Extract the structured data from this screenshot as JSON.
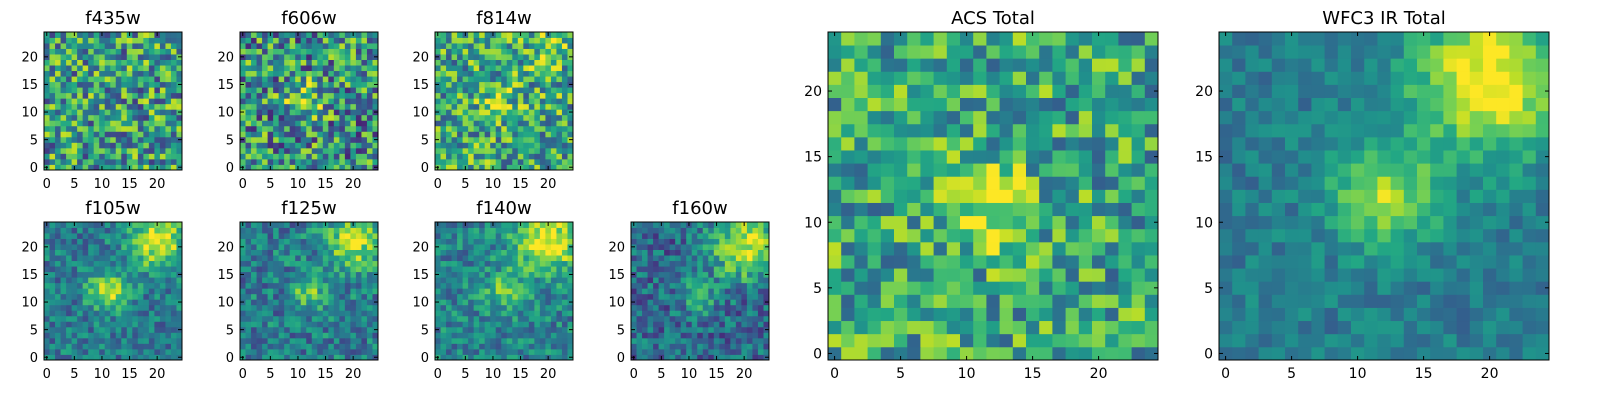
{
  "colormap": "viridis",
  "chart_data": [
    {
      "type": "heatmap",
      "title": "f435w",
      "xticks": [
        0,
        5,
        10,
        15,
        20
      ],
      "yticks": [
        0,
        5,
        10,
        15,
        20
      ],
      "xlim": [
        -0.5,
        24.5
      ],
      "ylim": [
        -0.5,
        24.5
      ],
      "features": {
        "base": 0.55,
        "noise": 0.38,
        "blobs": []
      }
    },
    {
      "type": "heatmap",
      "title": "f606w",
      "xticks": [
        0,
        5,
        10,
        15,
        20
      ],
      "yticks": [
        0,
        5,
        10,
        15,
        20
      ],
      "xlim": [
        -0.5,
        24.5
      ],
      "ylim": [
        -0.5,
        24.5
      ],
      "features": {
        "base": 0.5,
        "noise": 0.4,
        "blobs": [
          {
            "x": 11,
            "y": 12,
            "s": 2.2,
            "a": 0.4
          }
        ]
      }
    },
    {
      "type": "heatmap",
      "title": "f814w",
      "xticks": [
        0,
        5,
        10,
        15,
        20
      ],
      "yticks": [
        0,
        5,
        10,
        15,
        20
      ],
      "xlim": [
        -0.5,
        24.5
      ],
      "ylim": [
        -0.5,
        24.5
      ],
      "features": {
        "base": 0.6,
        "noise": 0.35,
        "blobs": [
          {
            "x": 11,
            "y": 12,
            "s": 2,
            "a": 0.25
          },
          {
            "x": 20,
            "y": 22,
            "s": 3,
            "a": 0.2
          }
        ]
      }
    },
    {
      "type": "heatmap",
      "title": "f105w",
      "xticks": [
        0,
        5,
        10,
        15,
        20
      ],
      "yticks": [
        0,
        5,
        10,
        15,
        20
      ],
      "xlim": [
        -0.5,
        24.5
      ],
      "ylim": [
        -0.5,
        24.5
      ],
      "features": {
        "base": 0.42,
        "noise": 0.2,
        "blobs": [
          {
            "x": 20,
            "y": 21,
            "s": 3.5,
            "a": 0.55
          },
          {
            "x": 11,
            "y": 12,
            "s": 2.5,
            "a": 0.45
          }
        ]
      }
    },
    {
      "type": "heatmap",
      "title": "f125w",
      "xticks": [
        0,
        5,
        10,
        15,
        20
      ],
      "yticks": [
        0,
        5,
        10,
        15,
        20
      ],
      "xlim": [
        -0.5,
        24.5
      ],
      "ylim": [
        -0.5,
        24.5
      ],
      "features": {
        "base": 0.42,
        "noise": 0.22,
        "blobs": [
          {
            "x": 20,
            "y": 21,
            "s": 3.5,
            "a": 0.5
          },
          {
            "x": 12,
            "y": 12,
            "s": 2.2,
            "a": 0.35
          }
        ]
      }
    },
    {
      "type": "heatmap",
      "title": "f140w",
      "xticks": [
        0,
        5,
        10,
        15,
        20
      ],
      "yticks": [
        0,
        5,
        10,
        15,
        20
      ],
      "xlim": [
        -0.5,
        24.5
      ],
      "ylim": [
        -0.5,
        24.5
      ],
      "features": {
        "base": 0.45,
        "noise": 0.2,
        "blobs": [
          {
            "x": 20,
            "y": 21,
            "s": 4,
            "a": 0.55
          },
          {
            "x": 12,
            "y": 12,
            "s": 2.5,
            "a": 0.3
          }
        ]
      }
    },
    {
      "type": "heatmap",
      "title": "f160w",
      "xticks": [
        0,
        5,
        10,
        15,
        20
      ],
      "yticks": [
        0,
        5,
        10,
        15,
        20
      ],
      "xlim": [
        -0.5,
        24.5
      ],
      "ylim": [
        -0.5,
        24.5
      ],
      "features": {
        "base": 0.35,
        "noise": 0.22,
        "blobs": [
          {
            "x": 20,
            "y": 20,
            "s": 4,
            "a": 0.6
          },
          {
            "x": 12,
            "y": 11,
            "s": 2.5,
            "a": 0.25
          }
        ]
      }
    },
    {
      "type": "heatmap",
      "title": "ACS Total",
      "xticks": [
        0,
        5,
        10,
        15,
        20
      ],
      "yticks": [
        0,
        5,
        10,
        15,
        20
      ],
      "xlim": [
        -0.5,
        24.5
      ],
      "ylim": [
        -0.5,
        24.5
      ],
      "features": {
        "base": 0.6,
        "noise": 0.3,
        "blobs": [
          {
            "x": 11.5,
            "y": 11.5,
            "s": 2.2,
            "a": 0.4
          }
        ]
      }
    },
    {
      "type": "heatmap",
      "title": "WFC3 IR Total",
      "xticks": [
        0,
        5,
        10,
        15,
        20
      ],
      "yticks": [
        0,
        5,
        10,
        15,
        20
      ],
      "xlim": [
        -0.5,
        24.5
      ],
      "ylim": [
        -0.5,
        24.5
      ],
      "features": {
        "base": 0.42,
        "noise": 0.12,
        "blobs": [
          {
            "x": 20,
            "y": 21,
            "s": 4,
            "a": 0.6
          },
          {
            "x": 12,
            "y": 12,
            "s": 2.8,
            "a": 0.45
          }
        ]
      }
    }
  ]
}
